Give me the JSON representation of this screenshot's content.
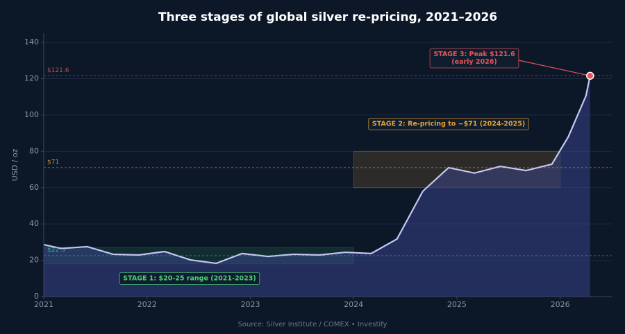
{
  "chart_data": {
    "type": "area-line",
    "title": "Three stages of global silver re-pricing, 2021–2026",
    "y_label": "USD / oz",
    "source": "Source: Silver Institute / COMEX  •  Investify",
    "x": [
      2021,
      2021.17,
      2021.42,
      2021.67,
      2021.92,
      2022.17,
      2022.42,
      2022.67,
      2022.92,
      2023.17,
      2023.42,
      2023.67,
      2023.92,
      2024.17,
      2024.42,
      2024.67,
      2024.92,
      2025.17,
      2025.42,
      2025.67,
      2025.92,
      2026.08,
      2026.25,
      2026.29
    ],
    "series": [
      {
        "name": "Silver",
        "color": "#c5c8f5",
        "values": [
          28.6,
          26.5,
          27.5,
          23.3,
          22.9,
          24.8,
          20.2,
          18.3,
          23.7,
          22.1,
          23.3,
          22.9,
          24.4,
          23.7,
          31.7,
          58.0,
          71.0,
          68.0,
          71.7,
          69.4,
          72.9,
          88.1,
          110.6,
          121.6
        ]
      }
    ],
    "xlim": [
      2021,
      2026.5
    ],
    "xticks": [
      2021,
      2022,
      2023,
      2024,
      2025,
      2026
    ],
    "ylim": [
      0,
      145
    ],
    "yticks": [
      0,
      20,
      40,
      60,
      80,
      100,
      120,
      140
    ],
    "grid": true,
    "reference_lines": [
      {
        "value": 121.6,
        "label": "$121.6",
        "color": "#e8545a"
      },
      {
        "value": 71,
        "label": "$71",
        "color": "#e8a030"
      },
      {
        "value": 22.5,
        "label": "$22.5",
        "color": "#3fbf8f"
      }
    ],
    "bands": [
      {
        "x": [
          2021,
          2024
        ],
        "y": [
          18,
          27
        ],
        "color": "#2fae6a"
      },
      {
        "x": [
          2024,
          2026
        ],
        "y": [
          60,
          80
        ],
        "color": "#e8a030"
      }
    ],
    "annotations": [
      {
        "text": [
          "STAGE 1: $20-25 range (2021-2023)"
        ],
        "color": "#4ccf7a"
      },
      {
        "text": [
          "STAGE 2: Re-pricing to ~$71 (2024-2025)"
        ],
        "color": "#e8a030"
      },
      {
        "text": [
          "STAGE 3: Peak $121.6",
          "(early 2026)"
        ],
        "color": "#e8545a"
      }
    ]
  }
}
